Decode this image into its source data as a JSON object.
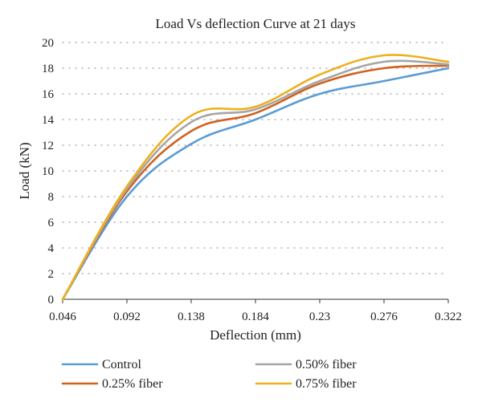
{
  "chart_data": {
    "type": "line",
    "title": "Load Vs deflection Curve at 21 days",
    "xlabel": "Deflection (mm)",
    "ylabel": "Load (kN)",
    "x": [
      0.046,
      0.092,
      0.138,
      0.184,
      0.23,
      0.276,
      0.322
    ],
    "x_tick_labels": [
      "0.046",
      "0.092",
      "0.138",
      "0.184",
      "0.23",
      "0.276",
      "0.322"
    ],
    "y_ticks": [
      0,
      2,
      4,
      6,
      8,
      10,
      12,
      14,
      16,
      18,
      20
    ],
    "ylim": [
      0,
      20
    ],
    "grid": true,
    "legend_position": "bottom",
    "series": [
      {
        "name": "Control",
        "color": "#5B9BD5",
        "values": [
          0,
          8.0,
          12.1,
          14.0,
          16.0,
          17.0,
          18.0
        ]
      },
      {
        "name": "0.50% fiber",
        "color": "#A5A5A5",
        "values": [
          0,
          8.6,
          13.8,
          14.8,
          17.0,
          18.5,
          18.3
        ]
      },
      {
        "name": "0.25% fiber",
        "color": "#D0621F",
        "values": [
          0,
          8.4,
          13.1,
          14.5,
          16.8,
          18.0,
          18.2
        ]
      },
      {
        "name": "0.75% fiber",
        "color": "#EDB01F",
        "values": [
          0,
          8.8,
          14.3,
          15.0,
          17.5,
          19.0,
          18.5
        ]
      }
    ]
  }
}
